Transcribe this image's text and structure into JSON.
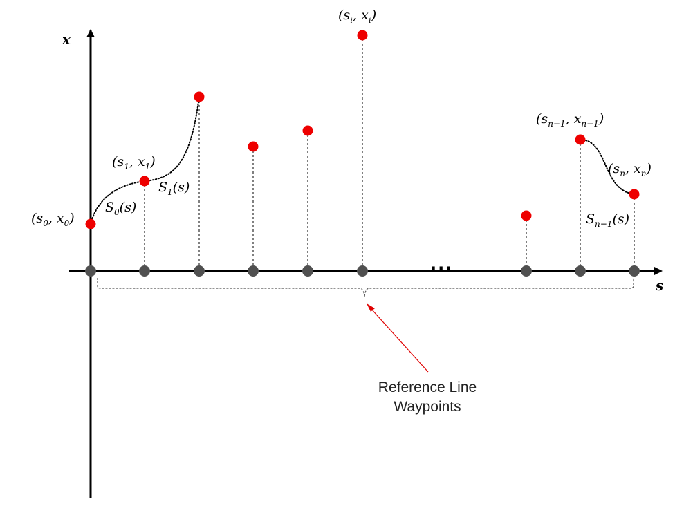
{
  "axes": {
    "x_label": "x",
    "s_label": "s"
  },
  "points": [
    {
      "base": "s",
      "base_sub": "0",
      "val": "x",
      "val_sub": "0"
    },
    {
      "base": "s",
      "base_sub": "1",
      "val": "x",
      "val_sub": "1"
    },
    {
      "base": "s",
      "base_sub": "i",
      "val": "x",
      "val_sub": "i"
    },
    {
      "base": "s",
      "base_sub": "n−1",
      "val": "x",
      "val_sub": "n−1"
    },
    {
      "base": "s",
      "base_sub": "n",
      "val": "x",
      "val_sub": "n"
    }
  ],
  "splines": [
    {
      "name": "S",
      "sub": "0",
      "arg": "(s)"
    },
    {
      "name": "S",
      "sub": "1",
      "arg": "(s)"
    },
    {
      "name": "S",
      "sub": "n−1",
      "arg": "(s)"
    }
  ],
  "ellipsis": "...",
  "callout": {
    "line1": "Reference Line",
    "line2": "Waypoints"
  },
  "colors": {
    "sample_point": "#ee0000",
    "waypoint": "#505050",
    "arrow": "#e00000"
  }
}
